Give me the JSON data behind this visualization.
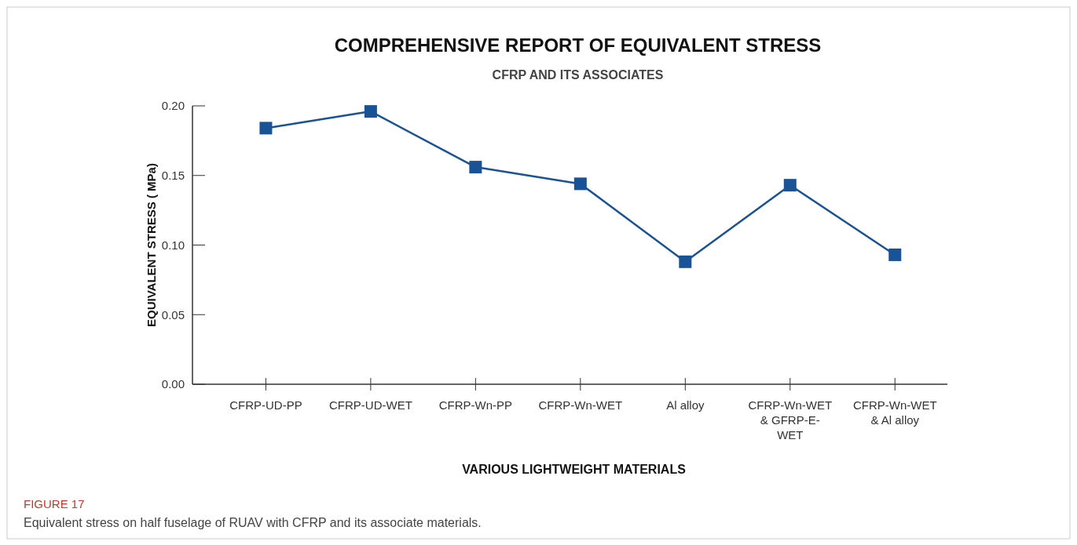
{
  "chart_data": {
    "type": "line",
    "title": "COMPREHENSIVE REPORT OF EQUIVALENT STRESS",
    "subtitle": "CFRP AND ITS ASSOCIATES",
    "xlabel": "VARIOUS  LIGHTWEIGHT MATERIALS",
    "ylabel": "EQUIVALENT STRESS ( MPa)",
    "categories": [
      "CFRP-UD-PP",
      "CFRP-UD-WET",
      "CFRP-Wn-PP",
      "CFRP-Wn-WET",
      "Al alloy",
      "CFRP-Wn-WET & GFRP-E-WET",
      "CFRP-Wn-WET & Al alloy"
    ],
    "series": [
      {
        "color": "#1a5296",
        "values": [
          0.184,
          0.196,
          0.156,
          0.144,
          0.088,
          0.143,
          0.093
        ]
      }
    ],
    "ylim": [
      0,
      0.2
    ],
    "yticks": [
      {
        "value": 0,
        "label": "0.00"
      },
      {
        "value": 0.05,
        "label": "0.05"
      },
      {
        "value": 0.1,
        "label": "0.10"
      },
      {
        "value": 0.15,
        "label": "0.15"
      },
      {
        "value": 0.2,
        "label": "0.20"
      }
    ],
    "marker": "square",
    "line_style": "solid",
    "grid": false,
    "annotations": [
      "FIGURE 17",
      "Equivalent stress on half fuselage of RUAV with CFRP and its associate materials."
    ]
  }
}
